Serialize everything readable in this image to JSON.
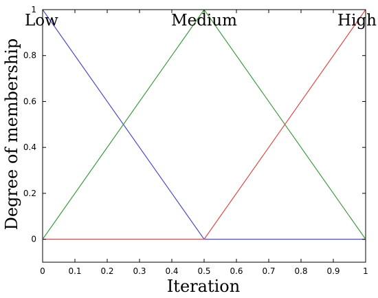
{
  "chart_data": {
    "type": "line",
    "xlabel": "Iteration",
    "ylabel": "Degree of membership",
    "xlim": [
      0,
      1
    ],
    "ylim": [
      -0.1,
      1
    ],
    "xticks": [
      "0",
      "0.1",
      "0.2",
      "0.3",
      "0.4",
      "0.5",
      "0.6",
      "0.7",
      "0.8",
      "0.9",
      "1"
    ],
    "yticks": [
      "0",
      "0.2",
      "0.4",
      "0.6",
      "0.8",
      "1"
    ],
    "grid": false,
    "series": [
      {
        "name": "Low",
        "color": "#4b4bd2",
        "x": [
          0,
          0.5,
          1
        ],
        "y": [
          1,
          0,
          0
        ]
      },
      {
        "name": "Medium",
        "color": "#3f9a3f",
        "x": [
          0,
          0.5,
          1
        ],
        "y": [
          0,
          1,
          0
        ]
      },
      {
        "name": "High",
        "color": "#e04848",
        "x": [
          0,
          0.5,
          1
        ],
        "y": [
          0,
          0,
          1
        ]
      }
    ]
  }
}
